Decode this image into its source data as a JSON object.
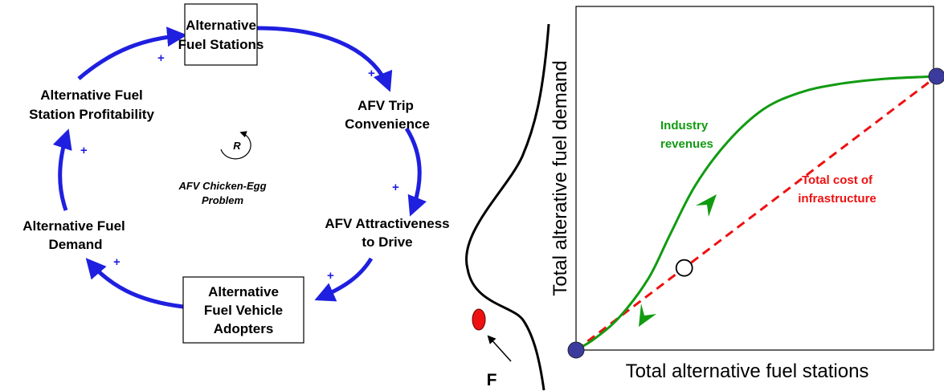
{
  "loop_diagram": {
    "nodes": {
      "stations": [
        "Alternative",
        "Fuel Stations"
      ],
      "convenience": [
        "AFV Trip",
        "Convenience"
      ],
      "attractiveness": [
        "AFV Attractiveness",
        "to Drive"
      ],
      "adopters": [
        "Alternative",
        "Fuel Vehicle",
        "Adopters"
      ],
      "demand": [
        "Alternative Fuel",
        "Demand"
      ],
      "profitability": [
        "Alternative Fuel",
        "Station Profitability"
      ]
    },
    "polarities": {
      "stations_to_convenience": "+",
      "convenience_to_attractiveness": "+",
      "attractiveness_to_adopters": "+",
      "adopters_to_demand": "+",
      "demand_to_profitability": "+",
      "profitability_to_stations": "+"
    },
    "loop": {
      "symbol": "R",
      "name": [
        "AFV Chicken-Egg",
        "Problem"
      ]
    },
    "arrow_color": "#1f1fe0"
  },
  "landscape": {
    "label": "F",
    "ball_color": "#ee1111"
  },
  "chart": {
    "xlabel": "Total alternative fuel stations",
    "ylabel": "Total alterative fuel demand",
    "revenue_label": [
      "Industry",
      "revenues"
    ],
    "cost_label": [
      "Total cost of",
      "infrastructure"
    ],
    "colors": {
      "revenue": "#119b11",
      "cost": "#ee1111",
      "stable_point": "#3b3b9e"
    }
  },
  "chart_data": {
    "type": "line",
    "series": [
      {
        "name": "Industry revenues",
        "color": "#119b11",
        "x": [
          0,
          0.05,
          0.12,
          0.2,
          0.26,
          0.33,
          0.42,
          0.52,
          0.62,
          0.72,
          0.85,
          1.0
        ],
        "y": [
          0,
          0.04,
          0.12,
          0.26,
          0.42,
          0.6,
          0.76,
          0.88,
          0.94,
          0.97,
          0.99,
          1.0
        ]
      },
      {
        "name": "Total cost of infrastructure",
        "color": "#ee1111",
        "x": [
          0,
          1.0
        ],
        "y": [
          0,
          1.0
        ]
      }
    ],
    "points": [
      {
        "x": 0,
        "y": 0,
        "kind": "stable"
      },
      {
        "x": 0.3,
        "y": 0.3,
        "kind": "unstable"
      },
      {
        "x": 1.0,
        "y": 1.0,
        "kind": "stable"
      }
    ],
    "xlabel": "Total alternative fuel stations",
    "ylabel": "Total alterative fuel demand",
    "xlim": [
      0,
      1
    ],
    "ylim": [
      0,
      1
    ],
    "grid": false
  }
}
